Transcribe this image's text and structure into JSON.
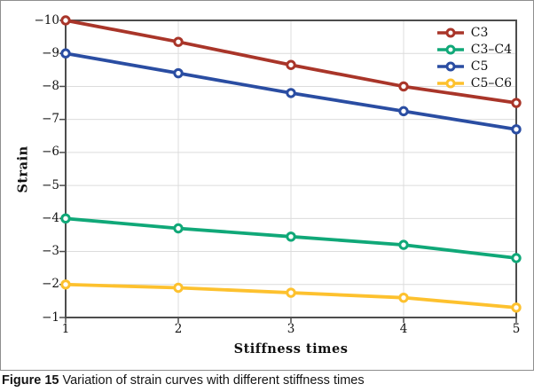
{
  "figure": {
    "caption_label": "Figure 15",
    "caption_text": " Variation of strain curves with different stiffness times"
  },
  "chart_data": {
    "type": "line",
    "title": "",
    "xlabel": "Stiffness times",
    "ylabel": "Strain",
    "x": [
      1,
      2,
      3,
      4,
      5
    ],
    "xtick_labels": [
      "1",
      "2",
      "3",
      "4",
      "5"
    ],
    "ytick_labels": [
      "−10",
      "−9",
      "−8",
      "−7",
      "−6",
      "−5",
      "−4",
      "−3",
      "−2",
      "−1"
    ],
    "xlim": [
      1,
      5
    ],
    "ylim_top": -10,
    "ylim_bottom": -1,
    "y_axis_inverted": true,
    "grid": true,
    "legend_position": "top-right",
    "marker": "open-circle",
    "colors": {
      "frame": "#4d4d4d",
      "gridline": "#dcdcdc",
      "tick": "#4d4d4d",
      "outer_border": "#8e8e8e"
    },
    "series": [
      {
        "name": "C3",
        "color": "#a93529",
        "values": [
          -10.0,
          -9.35,
          -8.65,
          -8.0,
          -7.5
        ]
      },
      {
        "name": "C3–C4",
        "color": "#10a878",
        "values": [
          -4.0,
          -3.7,
          -3.45,
          -3.2,
          -2.8
        ]
      },
      {
        "name": "C5",
        "color": "#2a4da2",
        "values": [
          -9.0,
          -8.4,
          -7.8,
          -7.25,
          -6.7
        ]
      },
      {
        "name": "C5–C6",
        "color": "#fdc12e",
        "values": [
          -2.0,
          -1.9,
          -1.75,
          -1.6,
          -1.3
        ]
      }
    ]
  }
}
